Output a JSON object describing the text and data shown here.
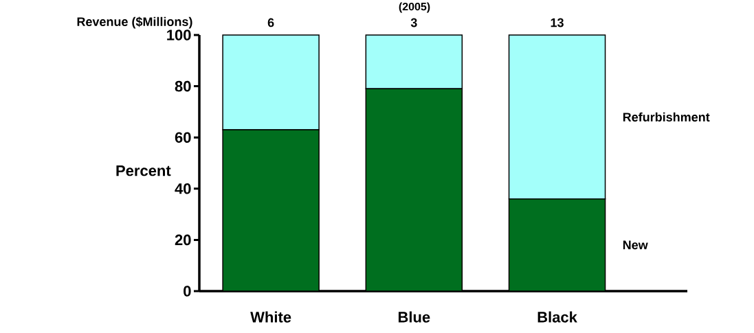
{
  "chart_data": {
    "type": "bar",
    "stacked": true,
    "title": "(2005)",
    "ylabel": "Percent",
    "categories": [
      "White",
      "Blue",
      "Black"
    ],
    "series": [
      {
        "name": "New",
        "color": "#006f1f",
        "values": [
          63,
          79,
          36
        ]
      },
      {
        "name": "Refurbishment",
        "color": "#a3fffa",
        "values": [
          37,
          21,
          64
        ]
      }
    ],
    "annotations": [
      "Revenue ($Millions)",
      "6",
      "3",
      "13"
    ],
    "ylim": [
      0,
      100
    ],
    "yticks": [
      0,
      20,
      40,
      60,
      80,
      100
    ],
    "grid": false,
    "legend": false
  }
}
